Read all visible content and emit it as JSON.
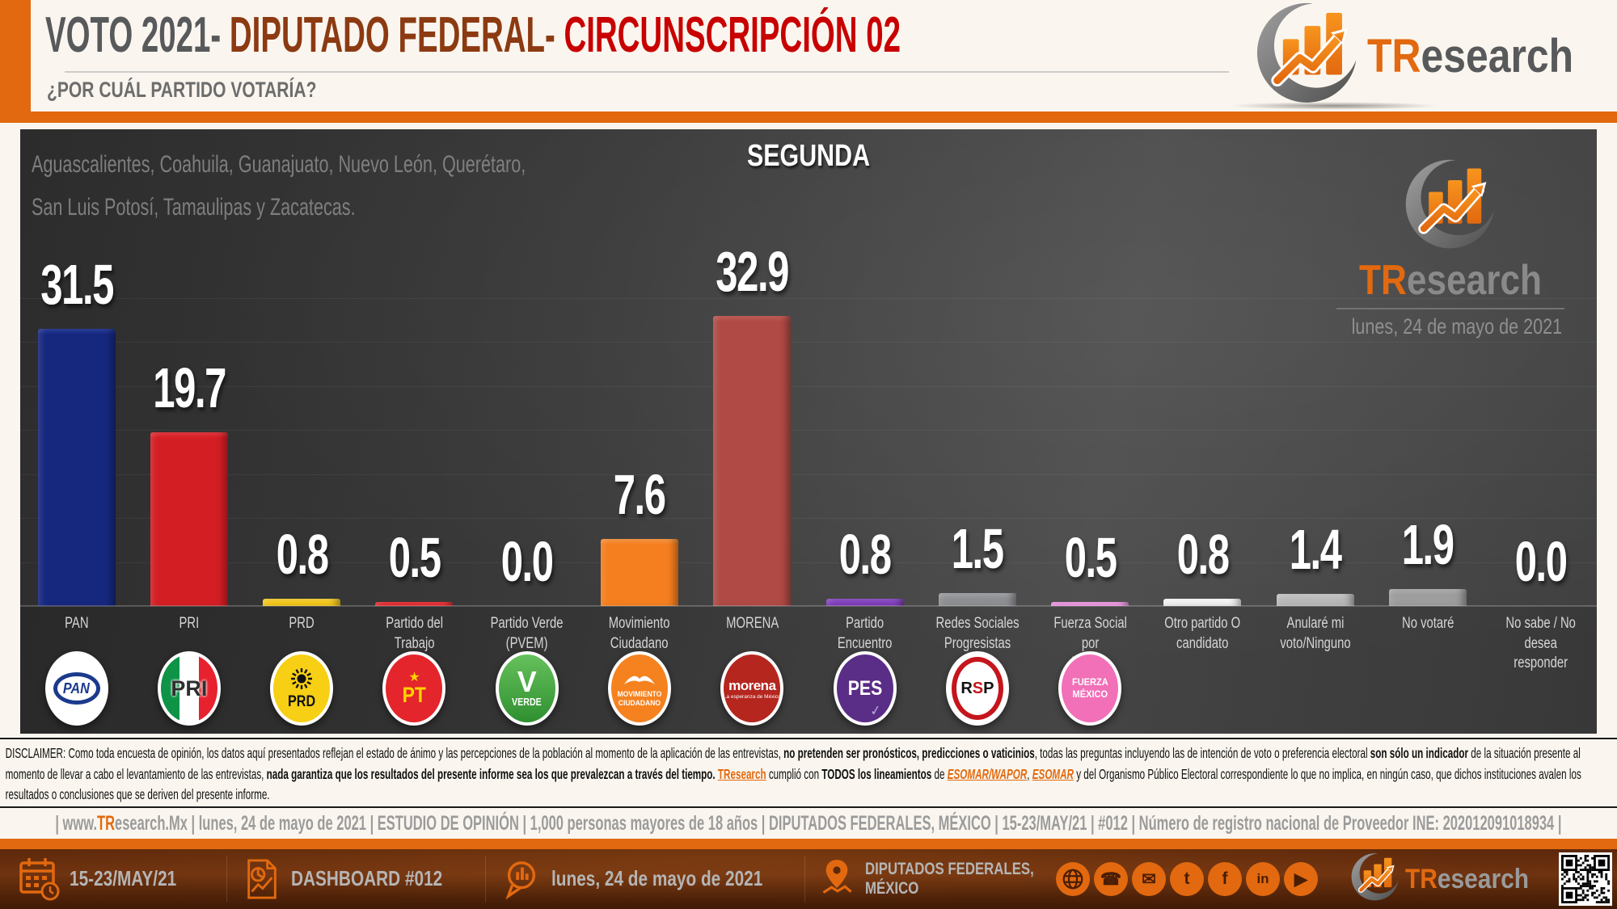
{
  "colors": {
    "accent": "#e2690f",
    "title_gray": "#58595b",
    "title_brown": "#8c3a12",
    "title_red": "#c80000",
    "chart_bg": "#3a3a3a",
    "footer_bg": "#5c280b"
  },
  "header": {
    "title_part1": "VOTO 2021- ",
    "title_part2": "DIPUTADO FEDERAL- ",
    "title_part3": "CIRCUNSCRIPCIÓN 02",
    "subtitle": "¿POR CUÁL PARTIDO VOTARÍA?"
  },
  "brand": {
    "tr": "TR",
    "esearch": "esearch"
  },
  "chart": {
    "region_line1": "Aguascalientes, Coahuila, Guanajuato, Nuevo León, Querétaro,",
    "region_line2": "San Luis Potosí, Tamaulipas y Zacatecas.",
    "round_label": "SEGUNDA",
    "watermark_date": "lunes, 24 de mayo de 2021"
  },
  "chart_data": {
    "type": "bar",
    "title": "VOTO 2021- DIPUTADO FEDERAL- CIRCUNSCRIPCIÓN 02",
    "subtitle": "SEGUNDA",
    "question": "¿POR CUÁL PARTIDO VOTARÍA?",
    "unit": "%",
    "ylim": [
      0,
      35
    ],
    "grid_step": 5,
    "grid": true,
    "legend": false,
    "categories": [
      "PAN",
      "PRI",
      "PRD",
      "Partido del Trabajo\n(PT)",
      "Partido Verde\n(PVEM)",
      "Movimiento\nCiudadano (MC)",
      "MORENA",
      "Partido Encuentro\nSocial",
      "Redes Sociales\nProgresistas",
      "Fuerza Social por\nMéxico",
      "Otro partido O\ncandidato",
      "Anularé mi\nvoto/Ninguno",
      "No votaré",
      "No sabe / No desea\nresponder"
    ],
    "values": [
      31.5,
      19.7,
      0.8,
      0.5,
      0.0,
      7.6,
      32.9,
      0.8,
      1.5,
      0.5,
      0.8,
      1.4,
      1.9,
      0.0
    ],
    "bar_colors": [
      "#16277e",
      "#d31e24",
      "#f2c311",
      "#e01b22",
      "#3daa35",
      "#f57e1f",
      "#b04a45",
      "#7d3bb5",
      "#8e8f92",
      "#ea86dd",
      "#ededed",
      "#b8b8b8",
      "#9d9d9d",
      "#888888"
    ],
    "bar_colors_top": [
      "#2a3f9e",
      "#e8393f",
      "#f8d53e",
      "#ef3a40",
      "#5cc653",
      "#fb9a47",
      "#c4605a",
      "#9355cc",
      "#a7a8ab",
      "#f2a3e8",
      "#ffffff",
      "#cccccc",
      "#b3b3b3",
      "#999999"
    ],
    "logos": [
      {
        "kind": "pan",
        "text": "PAN"
      },
      {
        "kind": "pri",
        "text": "PRI"
      },
      {
        "kind": "prd",
        "text": "PRD"
      },
      {
        "kind": "pt",
        "star": "★",
        "text": "PT"
      },
      {
        "kind": "pvem",
        "v": "V",
        "text": "VERDE"
      },
      {
        "kind": "mc",
        "text": "MOVIMIENTO\nCIUDADANO"
      },
      {
        "kind": "morena",
        "text": "morena",
        "sub": "La esperanza de México"
      },
      {
        "kind": "pes",
        "text": "PES",
        "check": "✓"
      },
      {
        "kind": "rsp",
        "l1": "R",
        "l2": "S",
        "l3": "P"
      },
      {
        "kind": "fxm",
        "text": "FUERZA\nMÉXICO"
      },
      null,
      null,
      null,
      null
    ]
  },
  "disclaimer": {
    "segments": [
      {
        "t": "DISCLAIMER: Como toda encuesta de opinión, los datos aquí presentados reflejan el estado de ánimo y las percepciones de la población al momento de la aplicación de las entrevistas, "
      },
      {
        "t": "no pretenden ser pronósticos, predicciones o vaticinios",
        "b": true
      },
      {
        "t": ", todas las preguntas incluyendo las de intención de voto o preferencia electoral "
      },
      {
        "t": "son sólo un indicador",
        "b": true
      },
      {
        "t": " de la situación presente al momento de llevar a cabo el levantamiento de las entrevistas, "
      },
      {
        "t": "nada garantiza que los resultados del presente informe sea los que prevalezcan a través del tiempo. ",
        "b": true
      },
      {
        "t": "TResearch",
        "link": true,
        "name": "tresearch-link"
      },
      {
        "t": " cumplió con "
      },
      {
        "t": "TODOS los lineamientos",
        "b": true
      },
      {
        "t": " de "
      },
      {
        "t": "ESOMAR/WAPOR",
        "link": true,
        "i": true,
        "name": "esomar-wapor-link"
      },
      {
        "t": ", "
      },
      {
        "t": "ESOMAR",
        "link": true,
        "i": true,
        "name": "esomar-link"
      },
      {
        "t": " y del Organismo Público Electoral correspondiente lo que no implica, en ningún caso, que dichos instituciones avalen los resultados o conclusiones que se deriven del presente informe."
      }
    ]
  },
  "info_strip": {
    "segments": [
      {
        "t": "| www."
      },
      {
        "t": "TR",
        "hl": true
      },
      {
        "t": "esearch.Mx | lunes, 24 de mayo de 2021 | ESTUDIO DE OPINIÓN | 1,000 personas mayores de 18 años | DIPUTADOS FEDERALES, MÉXICO | 15-23/MAY/21 | #012 | Número de registro nacional de Proveedor INE: 202012091018934 |"
      }
    ]
  },
  "footer": {
    "items": [
      {
        "icon": "calendar-clock-icon",
        "label": "15-23/MAY/21"
      },
      {
        "icon": "dashboard-report-icon",
        "label": "DASHBOARD #012"
      },
      {
        "icon": "speech-chart-icon",
        "label": "lunes, 24 de mayo de 2021"
      },
      {
        "icon": "map-pin-icon",
        "label": "DIPUTADOS FEDERALES,\nMÉXICO"
      }
    ],
    "social": [
      "globe-icon",
      "phone-icon",
      "email-icon",
      "twitter-icon",
      "facebook-icon",
      "linkedin-icon",
      "youtube-icon"
    ]
  }
}
